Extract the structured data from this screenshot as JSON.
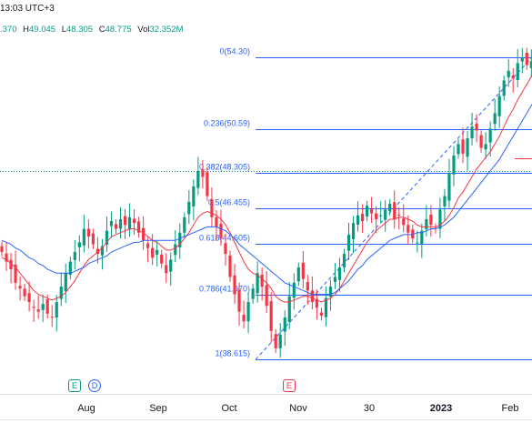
{
  "header": {
    "time": "13:03 UTC+3",
    "ohlc": {
      "o_value": ".370",
      "h_label": "H",
      "h_value": "49.045",
      "l_label": "L",
      "l_value": "48.305",
      "c_label": "C",
      "c_value": "48.775",
      "vol_label": "Vol",
      "vol_value": "32.352M"
    }
  },
  "events": [
    {
      "type": "earnings",
      "glyph": "E"
    },
    {
      "type": "dividend",
      "glyph": "D"
    },
    {
      "type": "earnings-upcoming",
      "glyph": "E"
    }
  ],
  "colors": {
    "up": "#089981",
    "down": "#f23645",
    "fib": "#2962ff",
    "ma_fast": "#f23645",
    "ma_slow": "#2962ff",
    "grid": "#e0e3eb"
  },
  "chart_data": {
    "type": "candlestick",
    "x_axis_labels": [
      "Aug",
      "Sep",
      "Oct",
      "Nov",
      "30",
      "2023",
      "Feb"
    ],
    "y_range": [
      38.0,
      55.0
    ],
    "fib_levels": [
      {
        "ratio": "0",
        "price": 54.3,
        "label": "0(54.30)"
      },
      {
        "ratio": "0.236",
        "price": 50.59,
        "label": "0.236(50.59)"
      },
      {
        "ratio": "0.382",
        "price": 48.305,
        "label": "0.382(48.305)"
      },
      {
        "ratio": "0.5",
        "price": 46.455,
        "label": "0.5(46.455)"
      },
      {
        "ratio": "0.618",
        "price": 44.605,
        "label": "0.618(44.605)"
      },
      {
        "ratio": "0.786",
        "price": 41.97,
        "label": "0.786(41.970)"
      },
      {
        "ratio": "1",
        "price": 38.615,
        "label": "1(38.615)"
      }
    ],
    "price_line": 48.305,
    "closes": [
      44.2,
      43.7,
      43.3,
      42.6,
      42.3,
      41.9,
      41.6,
      41.3,
      41.1,
      41.5,
      41.0,
      40.8,
      41.6,
      42.4,
      43.1,
      43.7,
      44.2,
      44.7,
      45.4,
      45.0,
      44.6,
      44.1,
      44.5,
      45.3,
      45.8,
      45.4,
      45.9,
      45.6,
      46.0,
      45.7,
      45.2,
      44.8,
      44.4,
      43.9,
      44.3,
      43.6,
      43.1,
      43.8,
      44.6,
      45.2,
      46.0,
      46.8,
      47.6,
      48.4,
      48.1,
      47.1,
      46.0,
      45.5,
      44.9,
      44.1,
      42.9,
      42.0,
      41.1,
      40.6,
      41.6,
      42.3,
      43.1,
      42.4,
      41.4,
      40.1,
      39.2,
      39.9,
      40.8,
      41.9,
      42.6,
      43.4,
      42.8,
      42.2,
      41.6,
      41.3,
      40.9,
      41.8,
      42.4,
      42.9,
      43.4,
      44.1,
      45.1,
      45.7,
      46.1,
      45.8,
      46.6,
      46.2,
      45.9,
      46.1,
      46.4,
      46.7,
      45.9,
      46.1,
      45.6,
      45.2,
      44.9,
      44.7,
      45.3,
      45.9,
      45.6,
      45.4,
      46.4,
      47.1,
      48.3,
      49.2,
      49.8,
      49.3,
      50.1,
      50.7,
      50.5,
      49.6,
      49.8,
      50.6,
      51.4,
      52.3,
      53.1,
      53.6,
      53.2,
      54.0,
      54.3,
      53.9,
      54.1,
      54.4
    ],
    "series": [
      {
        "name": "",
        "kind": "ma_fast",
        "values": [
          43.9,
          43.8,
          43.6,
          43.4,
          43.1,
          42.8,
          42.5,
          42.2,
          42.0,
          41.9,
          41.8,
          41.7,
          41.8,
          41.9,
          42.1,
          42.4,
          42.7,
          43.1,
          43.5,
          43.8,
          44.0,
          44.2,
          44.4,
          44.7,
          45.0,
          45.1,
          45.2,
          45.3,
          45.4,
          45.4,
          45.3,
          45.2,
          45.0,
          44.8,
          44.7,
          44.5,
          44.3,
          44.3,
          44.4,
          44.6,
          44.9,
          45.2,
          45.6,
          46.0,
          46.2,
          46.3,
          46.2,
          46.1,
          45.9,
          45.6,
          45.2,
          44.7,
          44.2,
          43.7,
          43.3,
          43.1,
          43.0,
          42.8,
          42.6,
          42.3,
          41.9,
          41.7,
          41.6,
          41.6,
          41.7,
          41.8,
          41.9,
          41.9,
          41.8,
          41.7,
          41.6,
          41.7,
          41.8,
          42.0,
          42.3,
          42.7,
          43.1,
          43.5,
          43.9,
          44.3,
          44.7,
          45.0,
          45.3,
          45.5,
          45.7,
          45.9,
          45.9,
          46.0,
          46.0,
          45.9,
          45.8,
          45.6,
          45.5,
          45.5,
          45.5,
          45.5,
          45.6,
          45.8,
          46.1,
          46.5,
          47.0,
          47.3,
          47.7,
          48.1,
          48.5,
          48.8,
          49.1,
          49.4,
          49.8,
          50.2,
          50.7,
          51.2,
          51.6,
          52.1,
          52.5,
          52.9,
          53.3,
          53.6
        ]
      },
      {
        "name": "",
        "kind": "ma_slow",
        "values": [
          44.8,
          44.7,
          44.6,
          44.4,
          44.3,
          44.1,
          43.9,
          43.8,
          43.6,
          43.5,
          43.3,
          43.2,
          43.1,
          43.1,
          43.1,
          43.1,
          43.2,
          43.3,
          43.4,
          43.6,
          43.7,
          43.8,
          43.9,
          44.0,
          44.2,
          44.3,
          44.4,
          44.5,
          44.6,
          44.7,
          44.7,
          44.8,
          44.8,
          44.8,
          44.8,
          44.8,
          44.8,
          44.8,
          44.8,
          44.9,
          45.0,
          45.1,
          45.2,
          45.3,
          45.4,
          45.5,
          45.5,
          45.5,
          45.4,
          45.3,
          45.1,
          44.9,
          44.6,
          44.4,
          44.2,
          44.0,
          43.8,
          43.6,
          43.4,
          43.2,
          43.0,
          42.8,
          42.6,
          42.5,
          42.4,
          42.3,
          42.2,
          42.1,
          42.0,
          42.0,
          42.0,
          42.0,
          42.0,
          42.1,
          42.3,
          42.5,
          42.7,
          43.0,
          43.3,
          43.5,
          43.8,
          44.0,
          44.2,
          44.4,
          44.6,
          44.8,
          44.9,
          45.0,
          45.1,
          45.1,
          45.1,
          45.2,
          45.2,
          45.3,
          45.4,
          45.4,
          45.5,
          45.6,
          45.8,
          46.0,
          46.3,
          46.6,
          46.9,
          47.2,
          47.5,
          47.8,
          48.1,
          48.4,
          48.7,
          49.0,
          49.4,
          49.8,
          50.2,
          50.6,
          51.0,
          51.4,
          51.8,
          52.2
        ]
      }
    ],
    "grid": false,
    "legend": "none"
  }
}
